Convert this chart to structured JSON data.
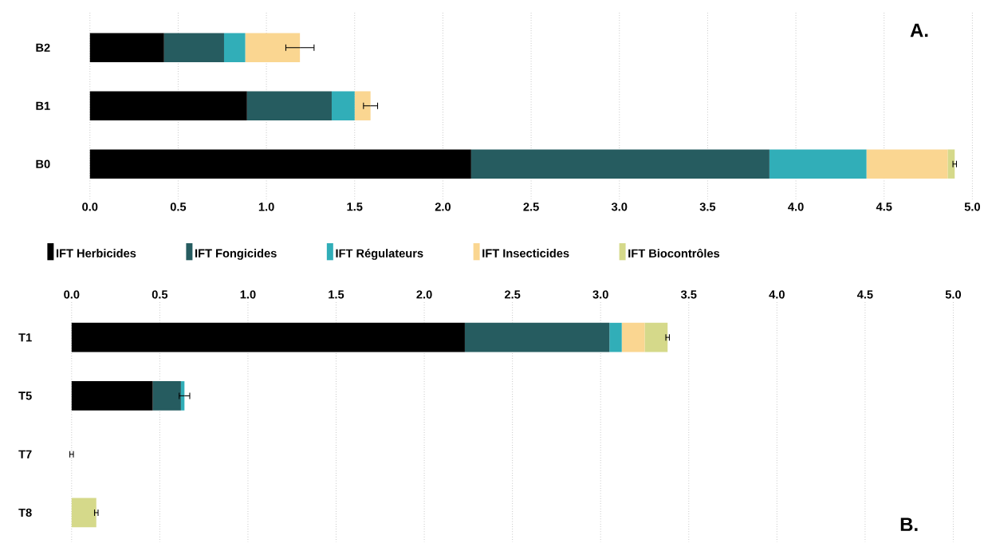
{
  "chart_data": [
    {
      "type": "bar",
      "orientation": "horizontal",
      "stacked": true,
      "categories": [
        "B2",
        "B1",
        "B0"
      ],
      "series": [
        {
          "name": "IFT Herbicides",
          "color": "#000000",
          "values": [
            0.42,
            0.89,
            2.16
          ]
        },
        {
          "name": "IFT Fongicides",
          "color": "#265c60",
          "values": [
            0.34,
            0.48,
            1.69
          ]
        },
        {
          "name": "IFT Régulateurs",
          "color": "#31aeb8",
          "values": [
            0.12,
            0.13,
            0.55
          ]
        },
        {
          "name": "IFT Insecticides",
          "color": "#fad691",
          "values": [
            0.31,
            0.09,
            0.46
          ]
        },
        {
          "name": "IFT Biocontrôles",
          "color": "#d5d98a",
          "values": [
            0,
            0,
            0.04
          ],
          "errors": [
            0.08,
            0.04,
            0.01
          ]
        }
      ],
      "xlim": [
        0,
        5
      ],
      "xticks": [
        {
          "value": 0,
          "label": "0.0"
        },
        {
          "value": 0.5,
          "label": "0.5"
        },
        {
          "value": 1,
          "label": "1.0"
        },
        {
          "value": 1.5,
          "label": "1.5"
        },
        {
          "value": 2,
          "label": "2.0"
        },
        {
          "value": 2.5,
          "label": "2.5"
        },
        {
          "value": 3,
          "label": "3.0"
        },
        {
          "value": 3.5,
          "label": "3.5"
        },
        {
          "value": 4,
          "label": "4.0"
        },
        {
          "value": 4.5,
          "label": "4.5"
        },
        {
          "value": 5,
          "label": "5.0"
        }
      ],
      "grid": "x",
      "legend": "bottom",
      "annotations": [
        "A."
      ]
    },
    {
      "type": "bar",
      "orientation": "horizontal",
      "stacked": true,
      "categories": [
        "T1",
        "T5",
        "T7",
        "T8"
      ],
      "series": [
        {
          "color": "#000000",
          "values": [
            2.23,
            0.46,
            0,
            0
          ]
        },
        {
          "color": "#265c60",
          "values": [
            0.82,
            0.16,
            0,
            0
          ]
        },
        {
          "color": "#31aeb8",
          "values": [
            0.07,
            0.02,
            0,
            0
          ]
        },
        {
          "color": "#fad691",
          "values": [
            0.13,
            0,
            0,
            0
          ]
        },
        {
          "color": "#d5d98a",
          "values": [
            0.13,
            0,
            0,
            0.14
          ],
          "errors": [
            0.01,
            0.03,
            0.01,
            0.01
          ]
        }
      ],
      "xlim": [
        0,
        5
      ],
      "xticks": [
        {
          "value": 0,
          "label": "0.0"
        },
        {
          "value": 0.5,
          "label": "0.5"
        },
        {
          "value": 1,
          "label": "1.0"
        },
        {
          "value": 1.5,
          "label": "1.5"
        },
        {
          "value": 2,
          "label": "2.0"
        },
        {
          "value": 2.5,
          "label": "2.5"
        },
        {
          "value": 3,
          "label": "3.0"
        },
        {
          "value": 3.5,
          "label": "3.5"
        },
        {
          "value": 4,
          "label": "4.0"
        },
        {
          "value": 4.5,
          "label": "4.5"
        },
        {
          "value": 5,
          "label": "5.0"
        }
      ],
      "grid": "x",
      "annotations": [
        "B."
      ]
    }
  ]
}
